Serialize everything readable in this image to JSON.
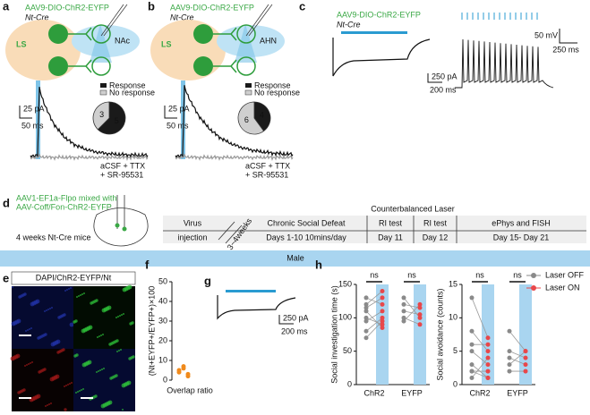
{
  "panels": {
    "a": {
      "letter": "a",
      "virus": "AAV9-DIO-ChR2-EYFP",
      "mouse": "Nt-Cre",
      "source": "LS",
      "target": "NAc",
      "scale_y": "25 pA",
      "scale_x": "50 ms",
      "condition": "aCSF + TTX",
      "condition2": "+ SR-95531",
      "pie": {
        "type": "pie",
        "categories": [
          "Response",
          "No response"
        ],
        "values": [
          5,
          3
        ],
        "colors": [
          "#1a1a1a",
          "#cfcfcf"
        ]
      }
    },
    "b": {
      "letter": "b",
      "virus": "AAV9-DIO-ChR2-EYFP",
      "mouse": "Nt-Cre",
      "source": "LS",
      "target": "AHN",
      "scale_y": "25 pA",
      "scale_x": "50 ms",
      "condition": "aCSF + TTX",
      "condition2": "+ SR-95531",
      "pie": {
        "type": "pie",
        "categories": [
          "Response",
          "No response"
        ],
        "values": [
          4,
          6
        ],
        "colors": [
          "#1a1a1a",
          "#cfcfcf"
        ]
      }
    },
    "c": {
      "letter": "c",
      "virus": "AAV9-DIO-ChR2-EYFP",
      "mouse": "Nt-Cre",
      "scale_y": "250 pA",
      "scale_x": "200 ms",
      "scale_y2": "50 mV",
      "scale_x2": "250 ms"
    },
    "d": {
      "letter": "d",
      "virus": "AAV1-EF1a-Flpo mixed with",
      "virus2": "AAV-Coff/Fon-ChR2-EYFP",
      "mice": "4 weeks Nt-Cre mice",
      "laser": "Counterbalanced Laser",
      "interval": "3~4weeks",
      "stages": [
        {
          "title": "Virus",
          "sub": "injection"
        },
        {
          "title": "Chronic Social Defeat",
          "sub": "Days 1-10 10mins/day"
        },
        {
          "title": "RI test",
          "sub": "Day 11"
        },
        {
          "title": "RI test",
          "sub": "Day 12"
        },
        {
          "title": "ePhys and FISH",
          "sub": "Day 15- Day 21"
        }
      ],
      "sex": "Male"
    },
    "e": {
      "letter": "e",
      "stain": "DAPI/ChR2-EYFP/Nt"
    },
    "f": {
      "letter": "f",
      "chart": {
        "type": "dot",
        "ylabel": "(Nt+EYFP+/EYFP+)×100",
        "xlabel": "Overlap ratio",
        "values": [
          4,
          6,
          3,
          5,
          7,
          2
        ],
        "color": "#f08a1c",
        "ylim": [
          0,
          50
        ],
        "yticks": [
          0,
          10,
          20,
          30,
          40,
          50
        ]
      }
    },
    "g": {
      "letter": "g",
      "scale_y": "250 pA",
      "scale_x": "200 ms"
    },
    "h": {
      "letter": "h",
      "charts": [
        {
          "type": "paired-dot",
          "ylabel": "Social investigation time (s)",
          "categories": [
            "ChR2",
            "EYFP"
          ],
          "ylim": [
            0,
            150
          ],
          "yticks": [
            0,
            50,
            100,
            150
          ],
          "annotations": [
            "ns",
            "ns"
          ],
          "series": [
            {
              "name": "Laser OFF",
              "color": "#8a8a8a",
              "values": [
                [
                  130,
                  115,
                  100,
                  95,
                  80,
                  70,
                  120,
                  110
                ],
                [
                  120,
                  110,
                  100,
                  95,
                  130
                ]
              ]
            },
            {
              "name": "Laser ON",
              "color": "#e8474a",
              "values": [
                [
                  120,
                  130,
                  90,
                  110,
                  100,
                  95,
                  140,
                  85
                ],
                [
                  115,
                  105,
                  90,
                  120,
                  100
                ]
              ]
            }
          ]
        },
        {
          "type": "paired-dot",
          "ylabel": "Social avoidance (counts)",
          "categories": [
            "ChR2",
            "EYFP"
          ],
          "ylim": [
            0,
            15
          ],
          "yticks": [
            0,
            5,
            10,
            15
          ],
          "annotations": [
            "ns",
            "ns"
          ],
          "series": [
            {
              "name": "Laser OFF",
              "color": "#8a8a8a",
              "values": [
                [
                  13,
                  8,
                  5,
                  3,
                  2,
                  1,
                  2,
                  6
                ],
                [
                  8,
                  5,
                  4,
                  3,
                  2
                ]
              ]
            },
            {
              "name": "Laser ON",
              "color": "#e8474a",
              "values": [
                [
                  7,
                  5,
                  3,
                  1,
                  2,
                  4,
                  1,
                  6
                ],
                [
                  5,
                  4,
                  3,
                  5,
                  2
                ]
              ]
            }
          ]
        }
      ]
    }
  }
}
